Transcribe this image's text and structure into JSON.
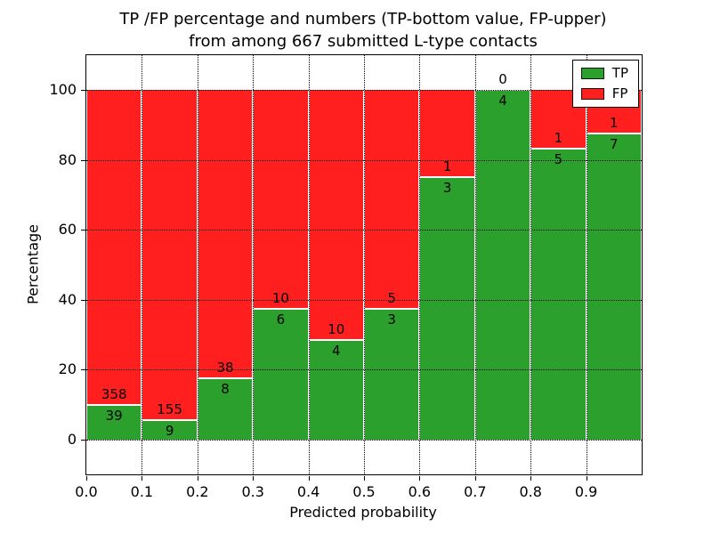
{
  "title": {
    "line1": "TP /FP percentage and numbers (TP-bottom value, FP-upper)",
    "line2": "from among 667 submitted L-type contacts"
  },
  "colors": {
    "tp": "#2ca02c",
    "fp": "#ff1f1f",
    "text": "#000000",
    "grid": "#000000",
    "background": "#ffffff"
  },
  "chart_data": {
    "type": "bar",
    "stacked": true,
    "normalized_to_percent": true,
    "title": "TP /FP percentage and numbers (TP-bottom value, FP-upper) from among 667 submitted L-type contacts",
    "xlabel": "Predicted probability",
    "ylabel": "Percentage",
    "xlim": [
      0.0,
      1.0
    ],
    "ylim": [
      -10,
      110
    ],
    "grid": "dotted, drawn over bars",
    "legend_position": "upper right",
    "legend": [
      {
        "label": "TP",
        "color": "#2ca02c"
      },
      {
        "label": "FP",
        "color": "#ff1f1f"
      }
    ],
    "total_contacts": 667,
    "x_ticks": [
      {
        "v": 0.0,
        "label": "0.0"
      },
      {
        "v": 0.1,
        "label": "0.1"
      },
      {
        "v": 0.2,
        "label": "0.2"
      },
      {
        "v": 0.3,
        "label": "0.3"
      },
      {
        "v": 0.4,
        "label": "0.4"
      },
      {
        "v": 0.5,
        "label": "0.5"
      },
      {
        "v": 0.6,
        "label": "0.6"
      },
      {
        "v": 0.7,
        "label": "0.7"
      },
      {
        "v": 0.8,
        "label": "0.8"
      },
      {
        "v": 0.9,
        "label": "0.9"
      }
    ],
    "y_ticks": [
      {
        "v": 0,
        "label": "0"
      },
      {
        "v": 20,
        "label": "20"
      },
      {
        "v": 40,
        "label": "40"
      },
      {
        "v": 60,
        "label": "60"
      },
      {
        "v": 80,
        "label": "80"
      },
      {
        "v": 100,
        "label": "100"
      }
    ],
    "bins": [
      {
        "range": [
          0.0,
          0.1
        ],
        "tp": 39,
        "fp": 358
      },
      {
        "range": [
          0.1,
          0.2
        ],
        "tp": 9,
        "fp": 155
      },
      {
        "range": [
          0.2,
          0.3
        ],
        "tp": 8,
        "fp": 38
      },
      {
        "range": [
          0.3,
          0.4
        ],
        "tp": 6,
        "fp": 10
      },
      {
        "range": [
          0.4,
          0.5
        ],
        "tp": 4,
        "fp": 10
      },
      {
        "range": [
          0.5,
          0.6
        ],
        "tp": 3,
        "fp": 5
      },
      {
        "range": [
          0.6,
          0.7
        ],
        "tp": 3,
        "fp": 1
      },
      {
        "range": [
          0.7,
          0.8
        ],
        "tp": 4,
        "fp": 0
      },
      {
        "range": [
          0.8,
          0.9
        ],
        "tp": 5,
        "fp": 1
      },
      {
        "range": [
          0.9,
          1.0
        ],
        "tp": 7,
        "fp": 1
      }
    ]
  }
}
